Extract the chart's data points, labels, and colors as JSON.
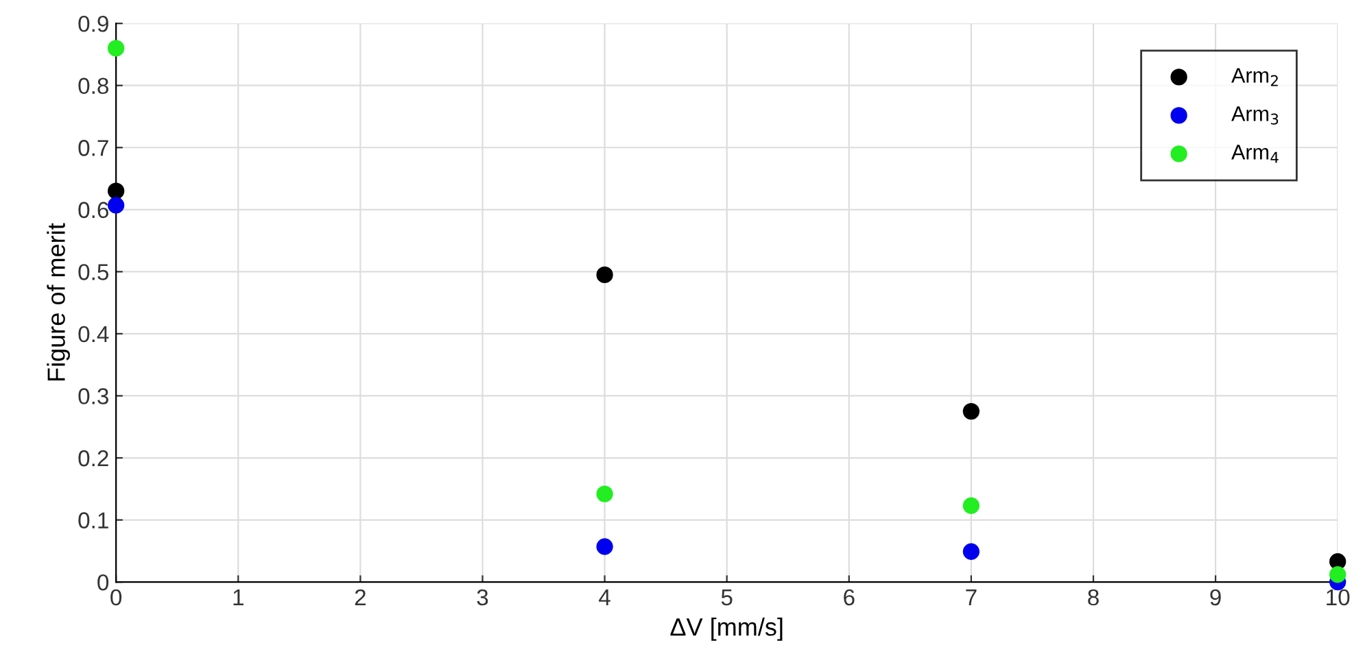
{
  "chart_data": {
    "type": "scatter",
    "xlabel": "ΔV [mm/s]",
    "ylabel": "Figure of merit",
    "x": [
      0,
      4,
      7,
      10
    ],
    "series": [
      {
        "name": "Arm$_{2}$",
        "color": "#000000",
        "values": [
          0.63,
          0.495,
          0.275,
          0.033
        ]
      },
      {
        "name": "Arm$_{3}$",
        "color": "#0000ee",
        "values": [
          0.607,
          0.057,
          0.049,
          0.0
        ]
      },
      {
        "name": "Arm$_{4}$",
        "color": "#22ee22",
        "values": [
          0.86,
          0.142,
          0.123,
          0.012
        ]
      }
    ],
    "xlim": [
      0,
      10
    ],
    "xticks": [
      0,
      1,
      2,
      3,
      4,
      5,
      6,
      7,
      8,
      9,
      10
    ],
    "ylim": [
      0,
      0.9
    ],
    "yticks": [
      0,
      0.1,
      0.2,
      0.3,
      0.4,
      0.5,
      0.6,
      0.7,
      0.8,
      0.9
    ],
    "grid": true,
    "legend": "top right",
    "marker": "circle"
  }
}
